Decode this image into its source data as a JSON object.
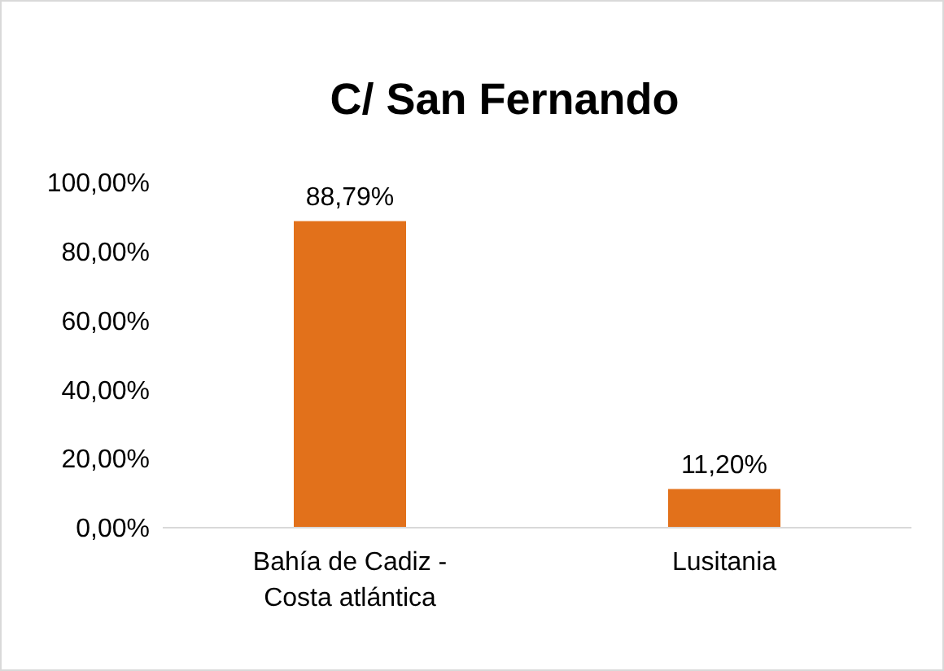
{
  "chart_data": {
    "type": "bar",
    "title": "C/ San Fernando",
    "categories": [
      "Bahía de Cadiz - Costa atlántica",
      "Lusitania"
    ],
    "values": [
      88.79,
      11.2
    ],
    "value_labels": [
      "88,79%",
      "11,20%"
    ],
    "color": "#e2711b",
    "ylim": [
      0,
      100
    ],
    "yticks": [
      {
        "value": 0,
        "label": "0,00%"
      },
      {
        "value": 20,
        "label": "20,00%"
      },
      {
        "value": 40,
        "label": "40,00%"
      },
      {
        "value": 60,
        "label": "60,00%"
      },
      {
        "value": 80,
        "label": "80,00%"
      },
      {
        "value": 100,
        "label": "100,00%"
      }
    ],
    "grid": false
  }
}
